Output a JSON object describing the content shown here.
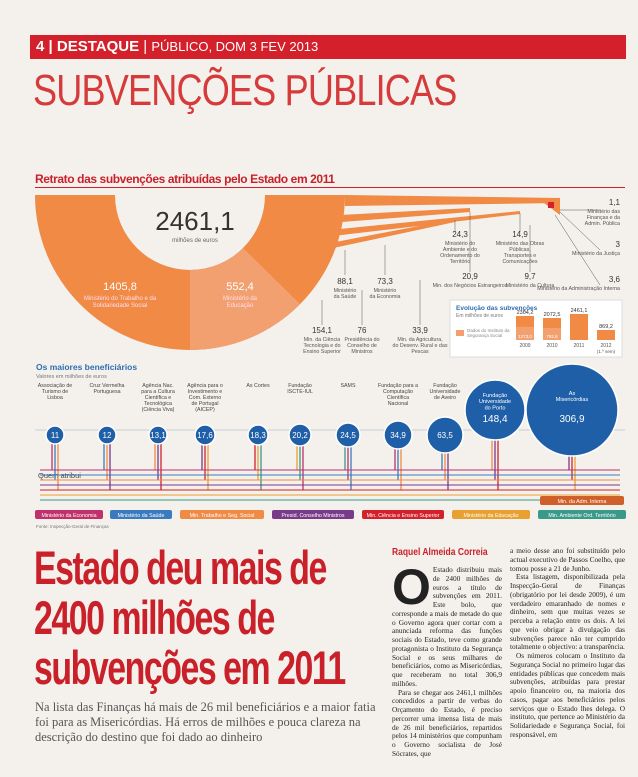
{
  "header": {
    "page": "4",
    "section": "DESTAQUE",
    "issue": "PÚBLICO, DOM 3 FEV 2013"
  },
  "title": "SUBVENÇÕES PÚBLICAS",
  "infographic": {
    "title": "Retrato das subvenções atribuídas pelo Estado em 2011",
    "total": "2461,1",
    "total_unit": "milhões de euros",
    "ministries": [
      {
        "value": "1405,8",
        "name": "Ministério do Trabalho e da Solidariedade Social"
      },
      {
        "value": "552,4",
        "name": "Ministério da Educação"
      },
      {
        "value": "154,1",
        "name": "Min. da Ciência Tecnologia e do Ensino Superior"
      },
      {
        "value": "88,1",
        "name": "Ministério da Saúde"
      },
      {
        "value": "76",
        "name": "Presidência do Conselho de Ministros"
      },
      {
        "value": "73,3",
        "name": "Ministério da Economia"
      },
      {
        "value": "33,9",
        "name": "Min. da Agricultura, do Desenv. Rural e das Pescas"
      },
      {
        "value": "24,3",
        "name": "Ministério do Ambiente e do Ordenamento do Território"
      },
      {
        "value": "20,9",
        "name": "Min. dos Negócios Estrangeiros"
      },
      {
        "value": "14,9",
        "name": "Ministério das Obras Públicas, Transportes e Comunicações"
      },
      {
        "value": "9,7",
        "name": "Ministério da Cultura"
      },
      {
        "value": "3,6",
        "name": "Ministério da Administração Interna"
      },
      {
        "value": "3",
        "name": "Ministério da Justiça"
      },
      {
        "value": "1,1",
        "name": "Ministério das Finanças e da Admin. Pública"
      }
    ],
    "evolution": {
      "title": "Evolução das subvenções",
      "unit": "Em milhões de euros",
      "legend": "Dados do Instituto da Segurança Social",
      "bars": [
        {
          "year": "2009",
          "total": "2304,2",
          "iss": "1273,0"
        },
        {
          "year": "2010",
          "total": "2072,5",
          "iss": "792,6"
        },
        {
          "year": "2011",
          "total": "2461,1"
        },
        {
          "year": "2012",
          "total": "869,2",
          "note": "(1.º sem)"
        }
      ]
    },
    "beneficiaries_title": "Os maiores beneficiários",
    "beneficiaries_unit": "Valores em milhões de euros",
    "beneficiaries": [
      {
        "name": "Associação de Turismo de Lisboa",
        "value": "11"
      },
      {
        "name": "Cruz Vermelha Portuguesa",
        "value": "12"
      },
      {
        "name": "Agência Nac. para a Cultura Científica e Tecnológica (Ciência Viva)",
        "value": "13,1"
      },
      {
        "name": "Agência para o Investimento e Com. Externo de Portugal (AICEP)",
        "value": "17,6"
      },
      {
        "name": "As Cortes",
        "value": "18,3"
      },
      {
        "name": "Fundação ISCTE-IUL",
        "value": "20,2"
      },
      {
        "name": "SAMS",
        "value": "24,5"
      },
      {
        "name": "Fundação para a Computação Científica Nacional",
        "value": "34,9"
      },
      {
        "name": "Fundação Universidade de Aveiro",
        "value": "63,5"
      },
      {
        "name": "Fundação Universidade do Porto",
        "value": "148,4"
      },
      {
        "name": "As Misericórdias",
        "value": "306,9"
      }
    ],
    "who": "Quem atribui",
    "givers": [
      "Ministério da Economia",
      "Ministério da Saúde",
      "Min. Trabalho e Seg. Social",
      "Presid. Conselho Ministros",
      "Min. Ciência e Ensino Superior",
      "Ministério da Educação",
      "Min. Ambiente Ord. Território"
    ],
    "giver_extra": "Min. da Adm. Interna",
    "source": "Fonte: Inspecção-Geral de Finanças"
  },
  "article": {
    "headline": [
      "Estado deu mais de",
      "2400 milhões de",
      "subvenções em 2011"
    ],
    "lead": "Na lista das Finanças há mais de 26 mil beneficiários e a maior fatia foi para as Misericórdias. Há erros de milhões e pouca clareza na descrição do destino que foi dado ao dinheiro",
    "byline": "Raquel Almeida Correia",
    "dropcap": "O",
    "col1": [
      "Estado distribuiu mais de 2400 milhões de euros a título de subvenções em 2011. Este bolo, que corresponde a mais de metade do que o Governo agora quer cortar com a anunciada reforma das funções sociais do Estado, teve como grande protagonista o Instituto da Segurança Social e os seus milhares de beneficiários, como as Misericórdias, que receberam no total 306,9 milhões.",
      "Para se chegar aos 2461,1 milhões concedidos a partir de verbas do Orçamento do Estado, é preciso percorrer uma imensa lista de mais de 26 mil beneficiários, repartidos pelos 14 ministérios que compunham o Governo socialista de José Sócrates, que"
    ],
    "col2": [
      "a meio desse ano foi substituído pelo actual executivo de Passos Coelho, que tomou posse a 21 de Junho.",
      "Esta listagem, disponibilizada pela Inspecção-Geral de Finanças (obrigatório por lei desde 2009), é um verdadeiro emaranhado de nomes e dinheiro, sem que muitas vezes se perceba a relação entre os dois. A lei que veio obrigar à divulgação das subvenções parece não ter cumprido totalmente o objectivo: a transparência.",
      "Os números colocam o Instituto da Segurança Social no primeiro lugar das entidades públicas que concedem mais subvenções, atribuídas para prestar apoio financeiro ou, na maioria dos casos, pagar aos beneficiários pelos serviços que o Estado lhes delega. O instituto, que pertence ao Ministério da Solidariedade e Segurança Social, foi responsável, em"
    ]
  }
}
